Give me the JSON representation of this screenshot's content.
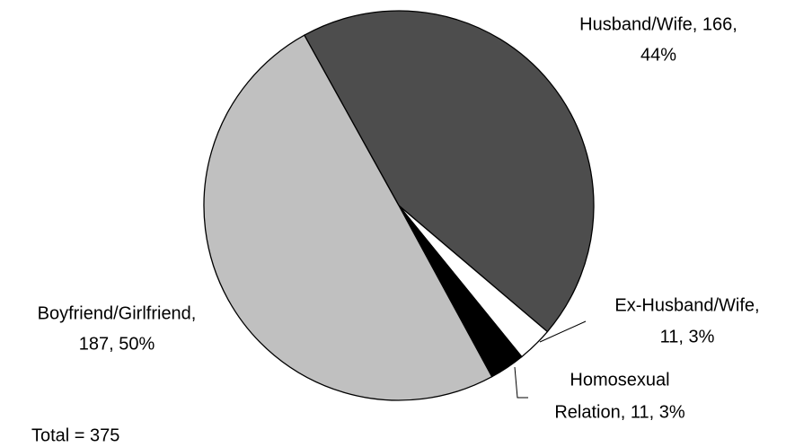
{
  "chart_data": {
    "type": "pie",
    "values": [
      166,
      11,
      11,
      187
    ],
    "value_labels": [
      [
        "Husband/Wife, 166,",
        "44%"
      ],
      [
        "Ex-Husband/Wife,",
        "11, 3%"
      ],
      [
        "Homosexual",
        "Relation, 11, 3%"
      ],
      [
        "Boyfriend/Girlfriend,",
        "187, 50%"
      ]
    ],
    "colors": [
      "#4d4d4d",
      "#ffffff",
      "#000000",
      "#c0c0c0"
    ],
    "annotation": "Total = 375"
  }
}
